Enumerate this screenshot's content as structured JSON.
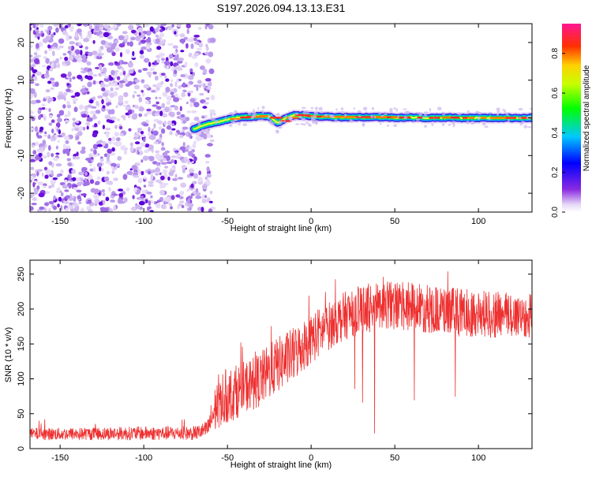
{
  "page": {
    "title": "S197.2026.094.13.13.E31"
  },
  "chart_data": [
    {
      "type": "heatmap",
      "name": "spectrogram",
      "title": "S197.2026.094.13.13.E31",
      "xlabel": "Height of straight line (km)",
      "ylabel": "Frequency (Hz)",
      "xlim": [
        -168,
        132
      ],
      "ylim": [
        -25,
        25
      ],
      "xticks": [
        -150,
        -100,
        -50,
        0,
        50,
        100
      ],
      "yticks": [
        -20,
        -10,
        0,
        10,
        20
      ],
      "noise_region_x": [
        -168,
        -70
      ],
      "signal_track": {
        "start_height_km": -70,
        "x": [
          -70,
          -65,
          -60,
          -55,
          -50,
          -45,
          -40,
          -35,
          -30,
          -25,
          -20,
          -15,
          -10,
          -5,
          0,
          10,
          20,
          30,
          40,
          50,
          60,
          70,
          80,
          90,
          100,
          110,
          120,
          132
        ],
        "frequency_hz": [
          -3,
          -2,
          -1.5,
          -1,
          -0.5,
          0,
          0.2,
          0.3,
          0.5,
          0.3,
          -1.3,
          0,
          0.8,
          0.6,
          0.4,
          0.3,
          0.2,
          0.2,
          0.2,
          0.1,
          0.1,
          0,
          0.1,
          0,
          0,
          0,
          0,
          0
        ]
      },
      "colorbar": {
        "label": "Normalized spectral amplitude",
        "range": [
          0,
          0.95
        ],
        "ticks": [
          "0.0",
          "0.2",
          "0.4",
          "0.6",
          "0.8"
        ],
        "tick_values": [
          0,
          0.2,
          0.4,
          0.6,
          0.8
        ]
      }
    },
    {
      "type": "line",
      "name": "snr",
      "xlabel": "Height of straight line (km)",
      "ylabel": "SNR (10 * v/v)",
      "xlim": [
        -168,
        132
      ],
      "ylim": [
        0,
        270
      ],
      "xticks": [
        -150,
        -100,
        -50,
        0,
        50,
        100
      ],
      "yticks": [
        0,
        50,
        100,
        150,
        200,
        250
      ],
      "color": "#ee3030",
      "envelope": {
        "x": [
          -168,
          -150,
          -100,
          -70,
          -62,
          -58,
          -55,
          -50,
          -40,
          -30,
          -20,
          -10,
          -5,
          0,
          10,
          20,
          30,
          40,
          50,
          60,
          70,
          80,
          90,
          100,
          110,
          120,
          132
        ],
        "low": [
          12,
          12,
          12,
          12,
          14,
          20,
          30,
          35,
          50,
          60,
          80,
          95,
          110,
          120,
          140,
          155,
          165,
          168,
          170,
          168,
          165,
          162,
          160,
          160,
          158,
          158,
          158
        ],
        "high": [
          30,
          30,
          32,
          32,
          40,
          85,
          110,
          115,
          125,
          140,
          160,
          175,
          185,
          195,
          210,
          225,
          235,
          240,
          240,
          238,
          235,
          232,
          230,
          228,
          226,
          225,
          225
        ]
      }
    }
  ]
}
